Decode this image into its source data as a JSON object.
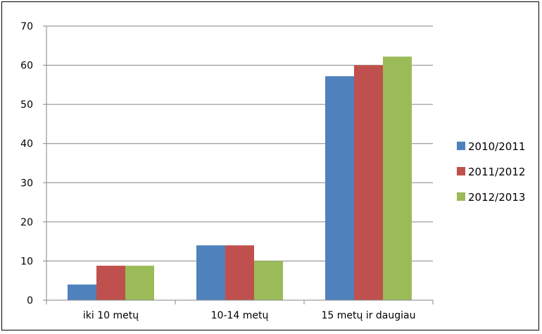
{
  "chart_data": {
    "type": "bar",
    "title": "",
    "xlabel": "",
    "ylabel": "",
    "categories": [
      "iki 10 metų",
      "10-14 metų",
      "15 metų ir daugiau"
    ],
    "series": [
      {
        "name": "2010/2011",
        "values": [
          4,
          14,
          57.2
        ],
        "color": "#4F81BD"
      },
      {
        "name": "2011/2012",
        "values": [
          8.8,
          14,
          60
        ],
        "color": "#C0504D"
      },
      {
        "name": "2012/2013",
        "values": [
          8.8,
          10,
          62.2
        ],
        "color": "#9BBB59"
      }
    ],
    "ylim": [
      0,
      70
    ],
    "yticks": [
      0,
      10,
      20,
      30,
      40,
      50,
      60,
      70
    ],
    "grid": true,
    "legend_position": "right"
  }
}
